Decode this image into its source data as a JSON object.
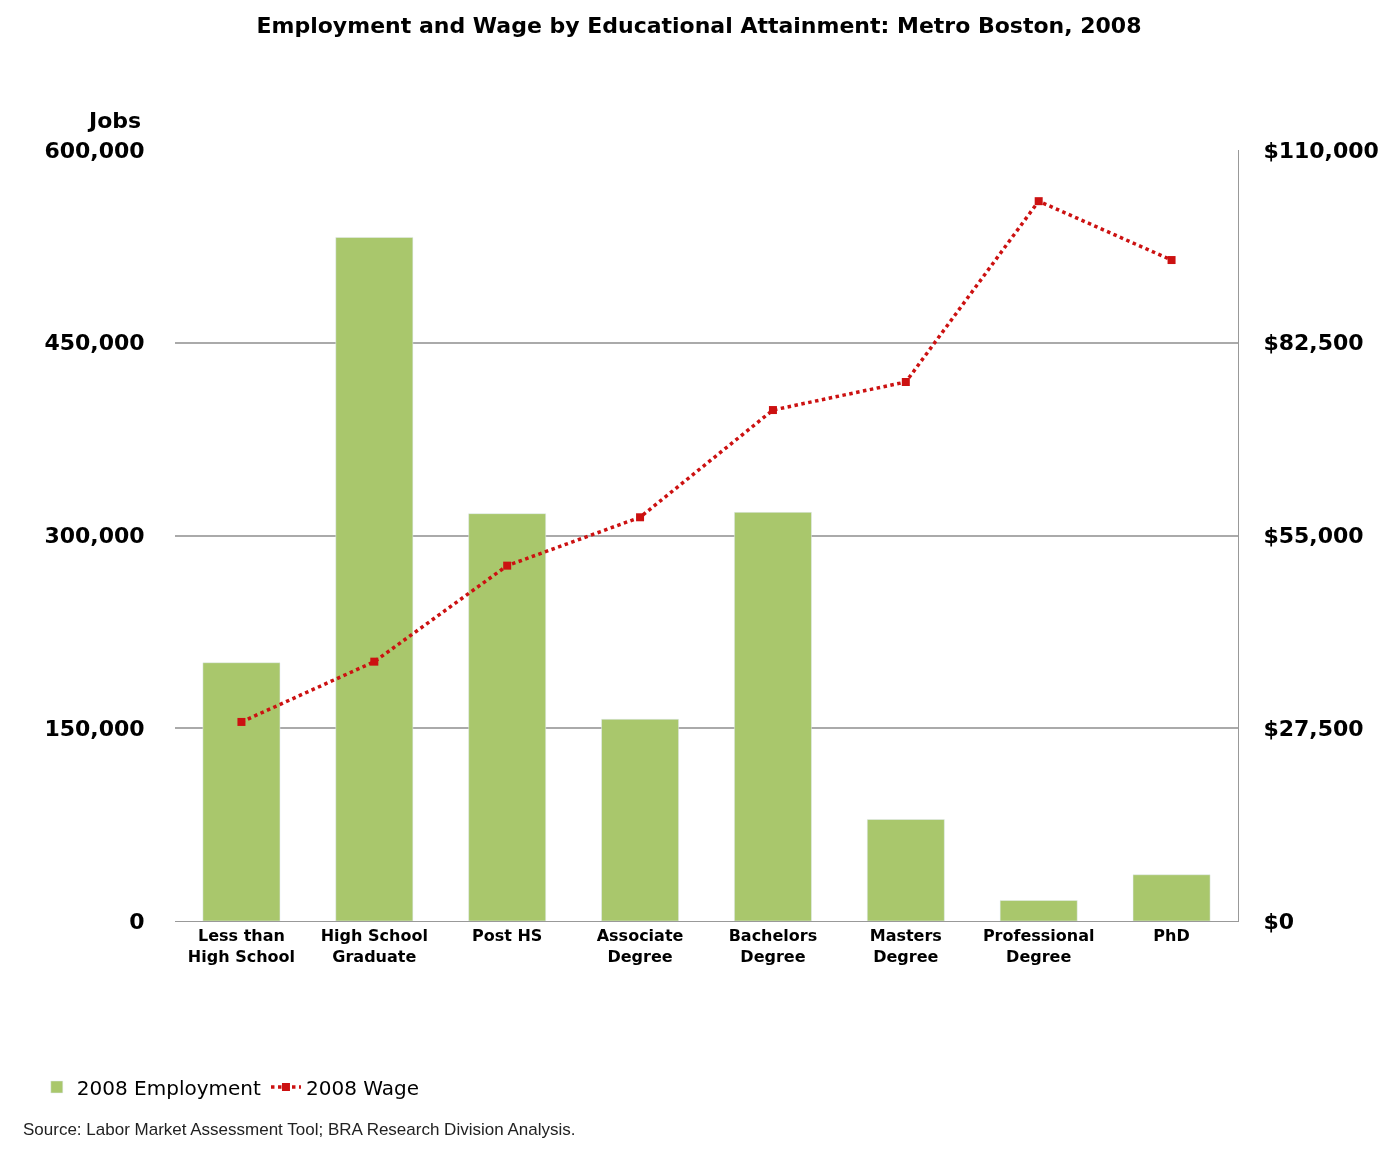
{
  "chart_data": {
    "type": "bar",
    "title": "Employment and Wage by Educational Attainment: Metro Boston, 2008",
    "ylabel": "Jobs",
    "categories": [
      "Less than High School",
      "High School Graduate",
      "Post HS",
      "Associate Degree",
      "Bachelors Degree",
      "Masters Degree",
      "Professional Degree",
      "PhD"
    ],
    "series": [
      {
        "name": "2008 Employment",
        "color": "#a9c76c",
        "values": [
          201000,
          532000,
          317000,
          157000,
          318000,
          79000,
          16000,
          36000
        ]
      },
      {
        "name": "2008 Wage",
        "type": "line",
        "axis": "y2",
        "color": "#cc1111",
        "marker": "square",
        "line_style": "dotted",
        "values": [
          28400,
          37000,
          50700,
          57600,
          72900,
          76900,
          102700,
          94300
        ]
      }
    ],
    "ylim": [
      0,
      600000
    ],
    "yticks": [
      {
        "value": 0,
        "label": "0"
      },
      {
        "value": 150000,
        "label": "150,000"
      },
      {
        "value": 300000,
        "label": "300,000"
      },
      {
        "value": 450000,
        "label": "450,000"
      },
      {
        "value": 600000,
        "label": "600,000"
      }
    ],
    "y2lim": [
      0,
      110000
    ],
    "y2ticks": [
      {
        "value": 0,
        "label": "$0"
      },
      {
        "value": 27500,
        "label": "$27,500"
      },
      {
        "value": 55000,
        "label": "$55,000"
      },
      {
        "value": 82500,
        "label": "$82,500"
      },
      {
        "value": 110000,
        "label": "$110,000"
      }
    ],
    "grid": "y",
    "legend": "bottom left",
    "annotations": [
      "Source: Labor Market Assessment Tool; BRA Research Division Analysis."
    ]
  }
}
